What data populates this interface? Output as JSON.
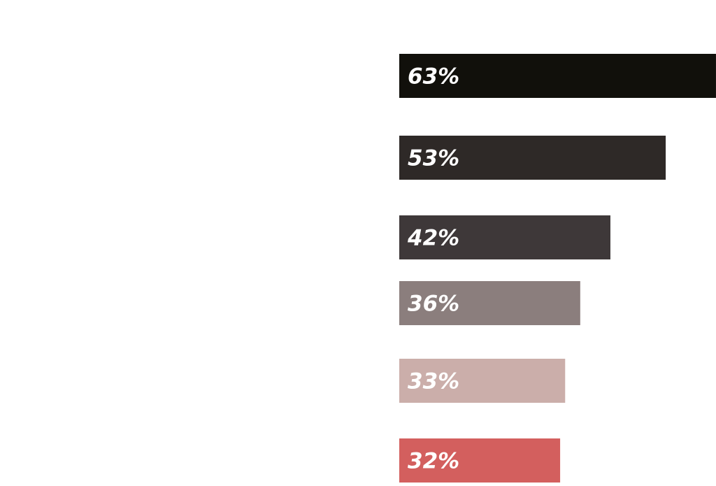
{
  "chart_data": {
    "type": "bar",
    "orientation": "horizontal",
    "categories": [
      "",
      "",
      "",
      "",
      "",
      ""
    ],
    "values": [
      63,
      53,
      42,
      36,
      33,
      32
    ],
    "value_labels": [
      "63%",
      "53%",
      "42%",
      "36%",
      "33%",
      "32%"
    ],
    "colors": [
      "#11100b",
      "#2e2927",
      "#3e3839",
      "#8b7e7d",
      "#cbaeaa",
      "#d35f5e"
    ],
    "unit": "%",
    "title": "",
    "xlabel": "",
    "ylabel": "",
    "grid": false,
    "legend": "none"
  }
}
